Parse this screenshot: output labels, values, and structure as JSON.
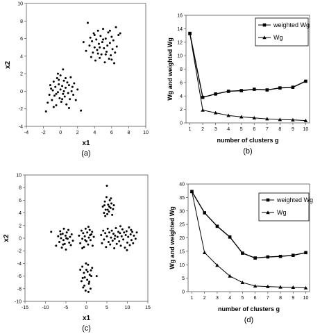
{
  "chart_data": [
    {
      "id": "a",
      "type": "scatter",
      "caption": "(a)",
      "xlabel": "x1",
      "ylabel": "x2",
      "xlim": [
        -4,
        10
      ],
      "ylim": [
        -4,
        10
      ],
      "xticks": [
        -4,
        -2,
        0,
        2,
        4,
        6,
        8,
        10
      ],
      "yticks": [
        -4,
        -2,
        0,
        2,
        4,
        6,
        8,
        10
      ],
      "grid": false,
      "points": [
        [
          -1.7,
          -2.3
        ],
        [
          -1.5,
          -1.3
        ],
        [
          -1.3,
          -0.4
        ],
        [
          -1.2,
          0.7
        ],
        [
          -1.0,
          -1.0
        ],
        [
          -0.9,
          0.1
        ],
        [
          -0.8,
          1.1
        ],
        [
          -0.7,
          -0.5
        ],
        [
          -0.6,
          0.5
        ],
        [
          -0.5,
          -1.6
        ],
        [
          -0.4,
          1.5
        ],
        [
          -0.3,
          -0.1
        ],
        [
          -0.2,
          0.8
        ],
        [
          -0.1,
          -0.8
        ],
        [
          0.0,
          0.2
        ],
        [
          0.0,
          1.8
        ],
        [
          0.1,
          -1.2
        ],
        [
          0.2,
          0.6
        ],
        [
          0.3,
          -0.3
        ],
        [
          0.3,
          2.5
        ],
        [
          0.4,
          1.2
        ],
        [
          0.5,
          -0.6
        ],
        [
          0.6,
          0.4
        ],
        [
          0.7,
          -1.5
        ],
        [
          0.8,
          1.0
        ],
        [
          0.9,
          -0.2
        ],
        [
          1.0,
          0.7
        ],
        [
          1.1,
          -0.9
        ],
        [
          1.2,
          1.6
        ],
        [
          1.3,
          0.0
        ],
        [
          1.5,
          -0.4
        ],
        [
          1.6,
          0.9
        ],
        [
          1.8,
          -1.0
        ],
        [
          2.0,
          0.2
        ],
        [
          2.4,
          -2.2
        ],
        [
          -0.5,
          -0.3
        ],
        [
          0.2,
          -0.9
        ],
        [
          -1.1,
          0.3
        ],
        [
          0.6,
          1.5
        ],
        [
          -0.3,
          2.0
        ],
        [
          1.0,
          -1.9
        ],
        [
          0.4,
          0.0
        ],
        [
          -0.8,
          -1.8
        ],
        [
          1.4,
          0.5
        ],
        [
          -0.2,
          1.3
        ],
        [
          2.7,
          5.6
        ],
        [
          3.0,
          4.6
        ],
        [
          3.2,
          7.8
        ],
        [
          3.4,
          5.2
        ],
        [
          3.5,
          6.1
        ],
        [
          3.6,
          3.9
        ],
        [
          3.7,
          5.7
        ],
        [
          3.8,
          4.4
        ],
        [
          3.9,
          6.6
        ],
        [
          4.0,
          5.0
        ],
        [
          4.1,
          3.5
        ],
        [
          4.2,
          5.9
        ],
        [
          4.3,
          4.7
        ],
        [
          4.4,
          6.9
        ],
        [
          4.5,
          5.4
        ],
        [
          4.6,
          3.8
        ],
        [
          4.7,
          6.3
        ],
        [
          4.8,
          4.2
        ],
        [
          4.9,
          5.6
        ],
        [
          5.0,
          7.1
        ],
        [
          5.1,
          4.9
        ],
        [
          5.2,
          3.3
        ],
        [
          5.3,
          6.0
        ],
        [
          5.4,
          4.5
        ],
        [
          5.5,
          5.2
        ],
        [
          5.6,
          6.7
        ],
        [
          5.7,
          3.7
        ],
        [
          5.8,
          5.5
        ],
        [
          5.9,
          4.1
        ],
        [
          6.0,
          6.2
        ],
        [
          6.1,
          4.8
        ],
        [
          6.2,
          5.8
        ],
        [
          6.3,
          3.2
        ],
        [
          6.4,
          4.4
        ],
        [
          6.5,
          7.3
        ],
        [
          6.6,
          5.1
        ],
        [
          6.8,
          6.4
        ],
        [
          7.0,
          6.6
        ],
        [
          4.6,
          5.0
        ],
        [
          5.3,
          4.2
        ],
        [
          4.0,
          6.4
        ],
        [
          5.8,
          6.9
        ],
        [
          4.4,
          4.3
        ],
        [
          6.0,
          3.6
        ],
        [
          5.0,
          5.9
        ]
      ]
    },
    {
      "id": "b",
      "type": "line",
      "caption": "(b)",
      "xlabel": "number of clusters g",
      "ylabel": "Wg and weighted Wg",
      "xlim": [
        1,
        10
      ],
      "ylim": [
        0,
        16
      ],
      "x": [
        1,
        2,
        3,
        4,
        5,
        6,
        7,
        8,
        9,
        10
      ],
      "yticks": [
        0,
        2,
        4,
        6,
        8,
        10,
        12,
        14,
        16
      ],
      "legend": "right",
      "series": [
        {
          "name": "weighted Wg",
          "marker": "square",
          "values": [
            13.3,
            3.8,
            4.3,
            4.7,
            4.8,
            5.0,
            4.9,
            5.2,
            5.3,
            6.2
          ]
        },
        {
          "name": "Wg",
          "marker": "triangle",
          "values": [
            13.3,
            1.9,
            1.5,
            1.1,
            0.9,
            0.75,
            0.6,
            0.5,
            0.45,
            0.35
          ]
        }
      ]
    },
    {
      "id": "c",
      "type": "scatter",
      "caption": "(c)",
      "xlabel": "x1",
      "ylabel": "x2",
      "xlim": [
        -15,
        15
      ],
      "ylim": [
        -10,
        10
      ],
      "xticks": [
        -15,
        -10,
        -5,
        0,
        5,
        10,
        15
      ],
      "yticks": [
        -10,
        -8,
        -6,
        -4,
        -2,
        0,
        2,
        4,
        6,
        8,
        10
      ],
      "grid": false,
      "points": [
        [
          -8.6,
          1.0
        ],
        [
          -7.4,
          -1.2
        ],
        [
          -6.9,
          0.3
        ],
        [
          -6.6,
          -0.6
        ],
        [
          -6.4,
          1.1
        ],
        [
          -6.2,
          0.0
        ],
        [
          -6.0,
          -1.5
        ],
        [
          -5.8,
          0.7
        ],
        [
          -5.6,
          -0.3
        ],
        [
          -5.5,
          1.5
        ],
        [
          -5.3,
          -0.9
        ],
        [
          -5.1,
          0.4
        ],
        [
          -5.0,
          -1.8
        ],
        [
          -4.8,
          0.9
        ],
        [
          -4.6,
          -0.1
        ],
        [
          -4.4,
          1.3
        ],
        [
          -4.2,
          -0.7
        ],
        [
          -4.0,
          0.2
        ],
        [
          -3.8,
          -1.1
        ],
        [
          -3.6,
          0.6
        ],
        [
          -3.3,
          -0.4
        ],
        [
          -5.7,
          -1.0
        ],
        [
          -6.3,
          0.6
        ],
        [
          -4.9,
          0.0
        ],
        [
          -1.8,
          0.4
        ],
        [
          -1.5,
          -0.8
        ],
        [
          -1.2,
          1.2
        ],
        [
          -1.0,
          -0.1
        ],
        [
          -0.8,
          0.8
        ],
        [
          -0.6,
          -1.4
        ],
        [
          -0.4,
          0.3
        ],
        [
          -0.2,
          1.5
        ],
        [
          0.0,
          -0.5
        ],
        [
          0.2,
          0.9
        ],
        [
          0.4,
          -1.0
        ],
        [
          0.6,
          0.1
        ],
        [
          0.8,
          1.3
        ],
        [
          1.0,
          -0.3
        ],
        [
          1.2,
          0.6
        ],
        [
          1.5,
          -1.2
        ],
        [
          1.8,
          0.2
        ],
        [
          -1.0,
          -1.6
        ],
        [
          0.5,
          1.8
        ],
        [
          -0.3,
          -0.3
        ],
        [
          0.9,
          0.5
        ],
        [
          1.4,
          1.0
        ],
        [
          -1.5,
          -5.0
        ],
        [
          -1.2,
          -6.8
        ],
        [
          -1.0,
          -4.5
        ],
        [
          -0.8,
          -7.8
        ],
        [
          -0.6,
          -5.5
        ],
        [
          -0.4,
          -6.2
        ],
        [
          -0.2,
          -8.3
        ],
        [
          0.0,
          -5.0
        ],
        [
          0.2,
          -6.6
        ],
        [
          0.4,
          -4.2
        ],
        [
          0.6,
          -7.2
        ],
        [
          0.8,
          -5.8
        ],
        [
          1.0,
          -8.0
        ],
        [
          1.2,
          -6.0
        ],
        [
          1.4,
          -4.7
        ],
        [
          -0.5,
          -7.5
        ],
        [
          0.3,
          -5.3
        ],
        [
          0.7,
          -6.9
        ],
        [
          -0.1,
          -4.0
        ],
        [
          0.5,
          -8.5
        ],
        [
          2.5,
          -6.0
        ],
        [
          -0.9,
          -6.3
        ],
        [
          1.1,
          -5.1
        ],
        [
          4.0,
          5.0
        ],
        [
          4.3,
          4.0
        ],
        [
          4.5,
          5.8
        ],
        [
          4.7,
          4.5
        ],
        [
          4.9,
          6.5
        ],
        [
          5.1,
          3.8
        ],
        [
          5.3,
          5.3
        ],
        [
          5.5,
          4.2
        ],
        [
          5.7,
          6.0
        ],
        [
          5.9,
          4.8
        ],
        [
          6.1,
          5.5
        ],
        [
          6.3,
          3.7
        ],
        [
          6.5,
          4.6
        ],
        [
          5.0,
          8.3
        ],
        [
          4.6,
          3.5
        ],
        [
          5.6,
          5.0
        ],
        [
          5.2,
          4.5
        ],
        [
          6.0,
          6.3
        ],
        [
          4.4,
          5.2
        ],
        [
          6.7,
          5.2
        ],
        [
          3.6,
          0.5
        ],
        [
          3.8,
          -0.8
        ],
        [
          4.1,
          1.2
        ],
        [
          4.3,
          -0.2
        ],
        [
          4.6,
          0.8
        ],
        [
          4.8,
          -1.4
        ],
        [
          5.0,
          0.3
        ],
        [
          5.2,
          1.5
        ],
        [
          5.4,
          -0.6
        ],
        [
          5.6,
          0.9
        ],
        [
          5.8,
          -1.0
        ],
        [
          6.0,
          0.1
        ],
        [
          6.2,
          1.2
        ],
        [
          6.4,
          -0.4
        ],
        [
          6.6,
          0.7
        ],
        [
          6.8,
          -1.6
        ],
        [
          7.0,
          0.4
        ],
        [
          7.2,
          1.6
        ],
        [
          7.4,
          -0.9
        ],
        [
          7.6,
          0.2
        ],
        [
          7.8,
          1.0
        ],
        [
          8.0,
          -0.5
        ],
        [
          8.2,
          0.8
        ],
        [
          8.4,
          -1.2
        ],
        [
          8.6,
          0.3
        ],
        [
          8.8,
          1.4
        ],
        [
          9.0,
          -0.2
        ],
        [
          9.2,
          0.9
        ],
        [
          9.4,
          -1.5
        ],
        [
          9.6,
          0.5
        ],
        [
          9.8,
          1.1
        ],
        [
          10.0,
          -0.7
        ],
        [
          10.2,
          0.2
        ],
        [
          10.4,
          1.7
        ],
        [
          10.6,
          -1.1
        ],
        [
          10.8,
          0.6
        ],
        [
          11.0,
          -0.3
        ],
        [
          11.2,
          1.0
        ],
        [
          11.4,
          -0.8
        ],
        [
          11.6,
          0.4
        ],
        [
          12.0,
          -0.1
        ],
        [
          12.3,
          0.9
        ],
        [
          9.9,
          -1.9
        ],
        [
          8.3,
          1.9
        ],
        [
          6.9,
          -0.1
        ],
        [
          10.9,
          1.3
        ]
      ]
    },
    {
      "id": "d",
      "type": "line",
      "caption": "(d)",
      "xlabel": "number of clusters g",
      "ylabel": "Wg and weighted Wg",
      "xlim": [
        1,
        10
      ],
      "ylim": [
        0,
        40
      ],
      "x": [
        1,
        2,
        3,
        4,
        5,
        6,
        7,
        8,
        9,
        10
      ],
      "yticks": [
        0,
        5,
        10,
        15,
        20,
        25,
        30,
        35,
        40
      ],
      "legend": "right",
      "series": [
        {
          "name": "weighted Wg",
          "marker": "square",
          "values": [
            37.2,
            29.3,
            24.3,
            20.3,
            14.3,
            12.5,
            12.9,
            13.1,
            13.5,
            14.5
          ]
        },
        {
          "name": "Wg",
          "marker": "triangle",
          "values": [
            37.2,
            14.5,
            9.8,
            5.8,
            3.4,
            2.1,
            1.9,
            1.7,
            1.6,
            1.4
          ]
        }
      ]
    }
  ]
}
